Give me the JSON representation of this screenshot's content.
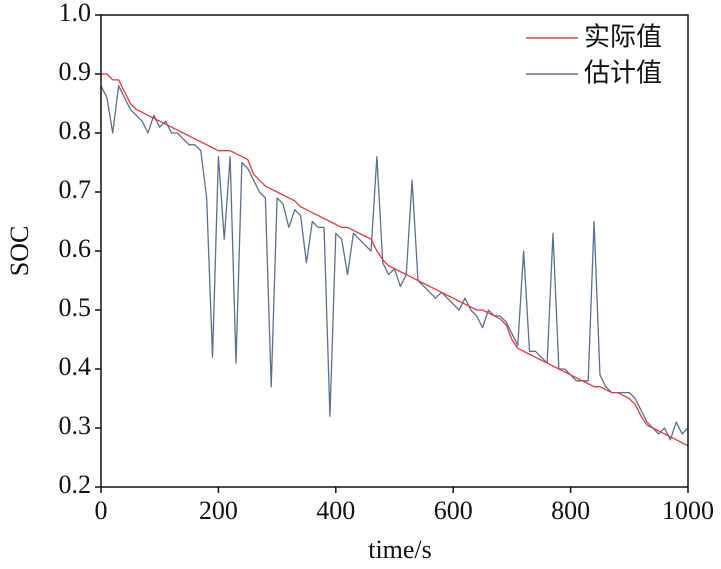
{
  "chart_data": {
    "type": "line",
    "xlabel": "time/s",
    "ylabel": "SOC",
    "xlim": [
      0,
      1000
    ],
    "xticks": [
      0,
      200,
      400,
      600,
      800,
      1000
    ],
    "ylim": [
      0.2,
      1.0
    ],
    "yticks": [
      0.2,
      0.3,
      0.4,
      0.5,
      0.6,
      0.7,
      0.8,
      0.9,
      {
        "value": 1.0,
        "label": "1.0"
      }
    ],
    "legend": "upper right",
    "x": [
      0,
      10,
      20,
      30,
      40,
      50,
      60,
      70,
      80,
      90,
      100,
      110,
      120,
      130,
      140,
      150,
      160,
      170,
      180,
      190,
      200,
      210,
      220,
      230,
      240,
      250,
      260,
      270,
      280,
      290,
      300,
      310,
      320,
      330,
      340,
      350,
      360,
      370,
      380,
      390,
      400,
      410,
      420,
      430,
      440,
      450,
      460,
      470,
      480,
      490,
      500,
      510,
      520,
      530,
      540,
      550,
      560,
      570,
      580,
      590,
      600,
      610,
      620,
      630,
      640,
      650,
      660,
      670,
      680,
      690,
      700,
      710,
      720,
      730,
      740,
      750,
      760,
      770,
      780,
      790,
      800,
      810,
      820,
      830,
      840,
      850,
      860,
      870,
      880,
      890,
      900,
      910,
      920,
      930,
      940,
      950,
      960,
      970,
      980,
      990,
      1000
    ],
    "series": [
      {
        "name": "实际值",
        "color": "#e8363b",
        "values": [
          0.9,
          0.9,
          0.89,
          0.89,
          0.87,
          0.85,
          0.84,
          0.835,
          0.83,
          0.825,
          0.82,
          0.815,
          0.81,
          0.805,
          0.8,
          0.795,
          0.79,
          0.785,
          0.78,
          0.775,
          0.77,
          0.77,
          0.77,
          0.765,
          0.76,
          0.755,
          0.73,
          0.72,
          0.71,
          0.705,
          0.7,
          0.695,
          0.69,
          0.685,
          0.675,
          0.67,
          0.665,
          0.66,
          0.655,
          0.65,
          0.645,
          0.64,
          0.64,
          0.635,
          0.63,
          0.625,
          0.62,
          0.6,
          0.585,
          0.575,
          0.57,
          0.565,
          0.56,
          0.555,
          0.55,
          0.545,
          0.54,
          0.535,
          0.53,
          0.525,
          0.52,
          0.515,
          0.51,
          0.505,
          0.5,
          0.5,
          0.495,
          0.49,
          0.485,
          0.475,
          0.45,
          0.435,
          0.43,
          0.425,
          0.42,
          0.415,
          0.41,
          0.405,
          0.4,
          0.395,
          0.39,
          0.385,
          0.38,
          0.375,
          0.37,
          0.37,
          0.365,
          0.36,
          0.36,
          0.355,
          0.35,
          0.34,
          0.32,
          0.305,
          0.3,
          0.295,
          0.29,
          0.285,
          0.28,
          0.275,
          0.27
        ]
      },
      {
        "name": "估计值",
        "color": "#5b6f90",
        "values": [
          0.88,
          0.86,
          0.8,
          0.88,
          0.86,
          0.84,
          0.83,
          0.82,
          0.8,
          0.83,
          0.81,
          0.82,
          0.8,
          0.8,
          0.79,
          0.78,
          0.78,
          0.77,
          0.69,
          0.42,
          0.76,
          0.62,
          0.76,
          0.41,
          0.75,
          0.74,
          0.72,
          0.7,
          0.69,
          0.37,
          0.69,
          0.68,
          0.64,
          0.67,
          0.66,
          0.58,
          0.65,
          0.64,
          0.64,
          0.32,
          0.63,
          0.62,
          0.56,
          0.63,
          0.62,
          0.61,
          0.6,
          0.76,
          0.58,
          0.56,
          0.57,
          0.54,
          0.56,
          0.72,
          0.55,
          0.54,
          0.53,
          0.52,
          0.53,
          0.52,
          0.51,
          0.5,
          0.52,
          0.5,
          0.49,
          0.47,
          0.5,
          0.49,
          0.49,
          0.48,
          0.46,
          0.44,
          0.6,
          0.43,
          0.43,
          0.42,
          0.41,
          0.63,
          0.4,
          0.4,
          0.39,
          0.38,
          0.38,
          0.38,
          0.65,
          0.39,
          0.37,
          0.36,
          0.36,
          0.36,
          0.36,
          0.35,
          0.33,
          0.31,
          0.3,
          0.29,
          0.3,
          0.28,
          0.31,
          0.29,
          0.3
        ]
      }
    ]
  }
}
